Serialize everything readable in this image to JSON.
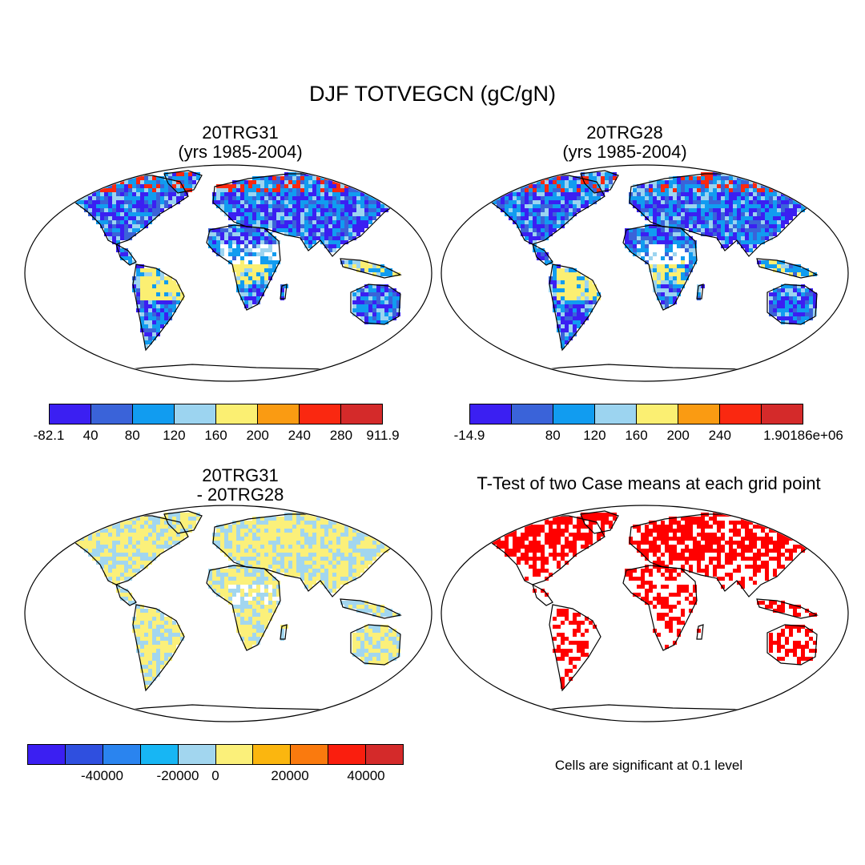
{
  "title": "DJF TOTVEGCN (gC/gN)",
  "panels": {
    "top_left": {
      "title_line1": "20TRG31",
      "title_line2": "(yrs 1985-2004)",
      "colorbar": {
        "colors": [
          "#3b1ff2",
          "#3a63d9",
          "#119cf0",
          "#9cd4f0",
          "#fbef72",
          "#fa9b12",
          "#fa2810",
          "#d42a2a"
        ],
        "tick_labels": [
          "-82.1",
          "40",
          "80",
          "120",
          "160",
          "200",
          "240",
          "280",
          "911.9"
        ]
      }
    },
    "top_right": {
      "title_line1": "20TRG28",
      "title_line2": "(yrs 1985-2004)",
      "colorbar": {
        "colors": [
          "#3b1ff2",
          "#3a63d9",
          "#119cf0",
          "#9cd4f0",
          "#fbef72",
          "#fa9b12",
          "#fa2810",
          "#d42a2a"
        ],
        "tick_labels": [
          "-14.9",
          "",
          "80",
          "120",
          "160",
          "200",
          "240",
          "",
          "1.90186e+06"
        ]
      }
    },
    "bottom_left": {
      "title_line1": "20TRG31",
      "title_line2": "- 20TRG28",
      "colorbar": {
        "colors": [
          "#3b1ff2",
          "#2f4fdf",
          "#2a84ef",
          "#17b6f4",
          "#a2d6ef",
          "#fbf07a",
          "#fbb60f",
          "#fa7a0e",
          "#fa1e0e",
          "#d42a2a"
        ],
        "tick_labels": [
          "-40000",
          "-20000",
          "0",
          "20000",
          "40000"
        ]
      }
    },
    "bottom_right": {
      "title": "T-Test of two Case means at each grid point",
      "note": "Cells are significant at 0.1 level"
    }
  },
  "map_palettes": {
    "top": [
      "#3b1ff2",
      "#3a63d9",
      "#119cf0",
      "#9cd4f0",
      "#fbef72",
      "#fa2810",
      "#ffffff"
    ],
    "diff": [
      "#fbf07a",
      "#a2d6ef",
      "#fbf07a",
      "#a2d6ef",
      "#ffffff"
    ],
    "ttest": [
      "#ff0000",
      "#ffffff"
    ]
  }
}
